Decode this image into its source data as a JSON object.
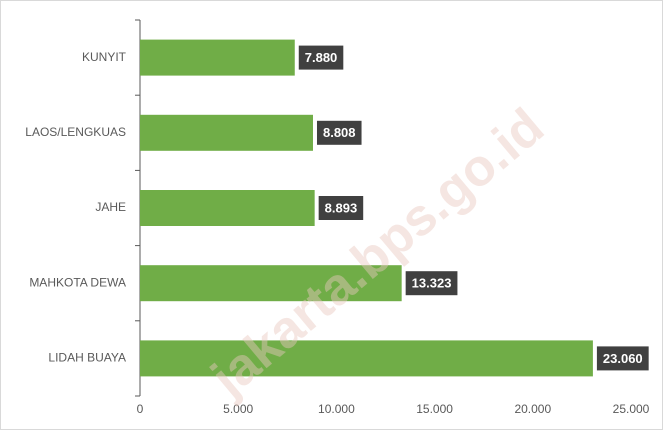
{
  "chart_data": {
    "type": "bar",
    "orientation": "horizontal",
    "categories": [
      "KUNYIT",
      "LAOS/LENGKUAS",
      "JAHE",
      "MAHKOTA DEWA",
      "LIDAH BUAYA"
    ],
    "values": [
      7880,
      8808,
      8893,
      13323,
      23060
    ],
    "value_labels": [
      "7.880",
      "8.808",
      "8.893",
      "13.323",
      "23.060"
    ],
    "color": "#70ad47",
    "xlim": [
      0,
      25000
    ],
    "xticks": [
      0,
      {
        "value": 5000,
        "label": "5.000"
      },
      {
        "value": 10000,
        "label": "10.000"
      },
      {
        "value": 15000,
        "label": "15.000"
      },
      {
        "value": 20000,
        "label": "20.000"
      },
      {
        "value": 25000,
        "label": "25.000"
      }
    ],
    "grid": false,
    "watermark": "jakarta.bps.go.id"
  }
}
